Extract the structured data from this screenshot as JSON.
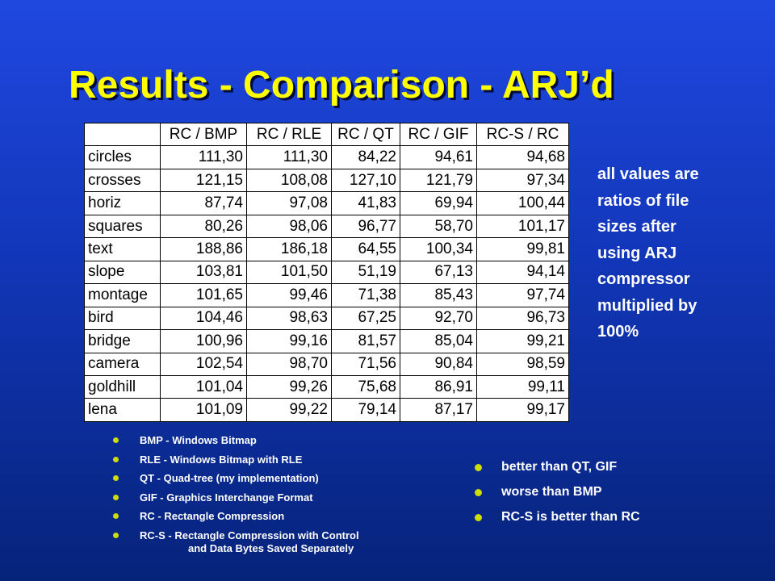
{
  "title": "Results - Comparison - ARJ’d",
  "table": {
    "header": [
      "RC / BMP",
      "RC / RLE",
      "RC / QT",
      "RC / GIF",
      "RC-S / RC"
    ],
    "rows": [
      [
        "circles",
        "111,30",
        "111,30",
        "84,22",
        "94,61",
        "94,68"
      ],
      [
        "crosses",
        "121,15",
        "108,08",
        "127,10",
        "121,79",
        "97,34"
      ],
      [
        "horiz",
        "87,74",
        "97,08",
        "41,83",
        "69,94",
        "100,44"
      ],
      [
        "squares",
        "80,26",
        "98,06",
        "96,77",
        "58,70",
        "101,17"
      ],
      [
        "text",
        "188,86",
        "186,18",
        "64,55",
        "100,34",
        "99,81"
      ],
      [
        "slope",
        "103,81",
        "101,50",
        "51,19",
        "67,13",
        "94,14"
      ],
      [
        "montage",
        "101,65",
        "99,46",
        "71,38",
        "85,43",
        "97,74"
      ],
      [
        "bird",
        "104,46",
        "98,63",
        "67,25",
        "92,70",
        "96,73"
      ],
      [
        "bridge",
        "100,96",
        "99,16",
        "81,57",
        "85,04",
        "99,21"
      ],
      [
        "camera",
        "102,54",
        "98,70",
        "71,56",
        "90,84",
        "98,59"
      ],
      [
        "goldhill",
        "101,04",
        "99,26",
        "75,68",
        "86,91",
        "99,11"
      ],
      [
        "lena",
        "101,09",
        "99,22",
        "79,14",
        "87,17",
        "99,17"
      ]
    ]
  },
  "note": [
    "all values are",
    "ratios of file",
    "sizes after",
    "using ARJ",
    "compressor",
    "multiplied by",
    "100%"
  ],
  "legend": [
    [
      "BMP - Windows Bitmap"
    ],
    [
      "RLE - Windows Bitmap with RLE"
    ],
    [
      "QT - Quad-tree (my implementation)"
    ],
    [
      "GIF - Graphics Interchange Format"
    ],
    [
      "RC -  Rectangle Compression"
    ],
    [
      "RC-S - Rectangle Compression with Control",
      "and Data Bytes Saved Separately"
    ]
  ],
  "conclusions": [
    "better than QT, GIF",
    "worse than BMP",
    "RC-S is better than RC"
  ]
}
